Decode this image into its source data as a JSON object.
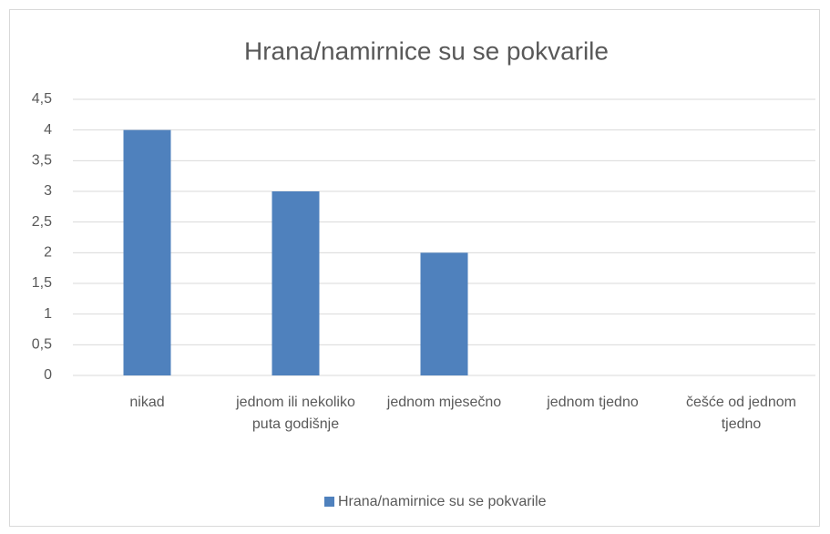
{
  "chart_data": {
    "type": "bar",
    "title": "Hrana/namirnice su se pokvarile",
    "categories": [
      "nikad",
      "jednom ili nekoliko puta godišnje",
      "jednom mjesečno",
      "jednom tjedno",
      "češće od jednom tjedno"
    ],
    "series": [
      {
        "name": "Hrana/namirnice su se pokvarile",
        "color": "#4f81bd",
        "values": [
          4,
          3,
          2,
          0,
          0
        ]
      }
    ],
    "ylim": [
      0,
      4.5
    ],
    "yticks": [
      0,
      {
        "value": 0.5,
        "label": "0,5"
      },
      1,
      {
        "value": 1.5,
        "label": "1,5"
      },
      2,
      {
        "value": 2.5,
        "label": "2,5"
      },
      3,
      {
        "value": 3.5,
        "label": "3,5"
      },
      4,
      {
        "value": 4.5,
        "label": "4,5"
      }
    ],
    "grid": true,
    "legend": "bottom"
  }
}
